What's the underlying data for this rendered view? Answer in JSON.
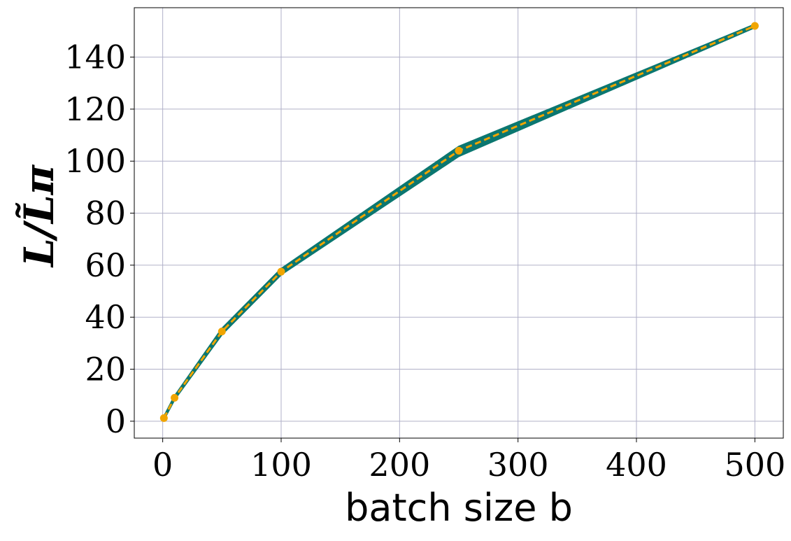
{
  "chart_data": {
    "type": "line",
    "xlabel": "batch size b",
    "ylabel": "L/L̃π",
    "xlim": [
      -24,
      524
    ],
    "ylim": [
      -6.5,
      159
    ],
    "x_ticks": [
      0,
      100,
      200,
      300,
      400,
      500
    ],
    "y_ticks": [
      0,
      20,
      40,
      60,
      80,
      100,
      120,
      140
    ],
    "x_tick_labels": [
      "0",
      "100",
      "200",
      "300",
      "400",
      "500"
    ],
    "y_tick_labels": [
      "0",
      "20",
      "40",
      "60",
      "80",
      "100",
      "120",
      "140"
    ],
    "grid": true,
    "legend": "none",
    "series": [
      {
        "color": "#f0a500",
        "marker": "circle",
        "line_style": "dashed",
        "x": [
          1,
          10,
          50,
          100,
          250,
          500
        ],
        "y": [
          1.2,
          9,
          34.5,
          57.5,
          104,
          152
        ]
      }
    ],
    "band": {
      "color": "#0b7770",
      "x": [
        1,
        10,
        50,
        100,
        250,
        500
      ],
      "lower": [
        0.8,
        8.5,
        33.5,
        56.5,
        102,
        151.5
      ],
      "upper": [
        1.6,
        9.5,
        35.5,
        58.5,
        105.5,
        152.5
      ]
    }
  },
  "colors": {
    "grid": "#b0b0c8",
    "frame": "#000000",
    "band": "#0b7770",
    "line": "#f0a500",
    "marker": "#f0a500"
  }
}
